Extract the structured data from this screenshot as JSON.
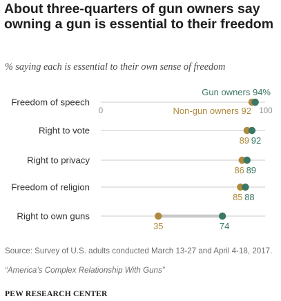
{
  "title": "About three-quarters of gun owners say owning a gun is essential to their freedom",
  "subtitle": "% saying each is essential to their own sense of freedom",
  "source": "Source: Survey of U.S. adults conducted March 13-27 and April 4-18, 2017.",
  "report": "“America’s Complex Relationship With Guns”",
  "brand": "PEW RESEARCH CENTER",
  "colors": {
    "gun_owners": "#3a7766",
    "non_gun_owners": "#b08a3e",
    "connector": "#c8c8c8",
    "axis": "#c9c9c9"
  },
  "chart_data": {
    "type": "dot",
    "xlim": [
      0,
      100
    ],
    "tick_labels": [
      "0",
      "100"
    ],
    "categories": [
      "Freedom of speech",
      "Right to vote",
      "Right to privacy",
      "Freedom of religion",
      "Right to own guns"
    ],
    "series": [
      {
        "name": "Gun owners",
        "values": [
          94,
          92,
          89,
          88,
          74
        ],
        "value_labels": [
          "94%",
          "92",
          "89",
          "88",
          "74"
        ]
      },
      {
        "name": "Non-gun owners",
        "values": [
          92,
          89,
          86,
          85,
          35
        ],
        "value_labels": [
          "92",
          "89",
          "86",
          "85",
          "35"
        ]
      }
    ],
    "legend_in_first_row": true
  }
}
